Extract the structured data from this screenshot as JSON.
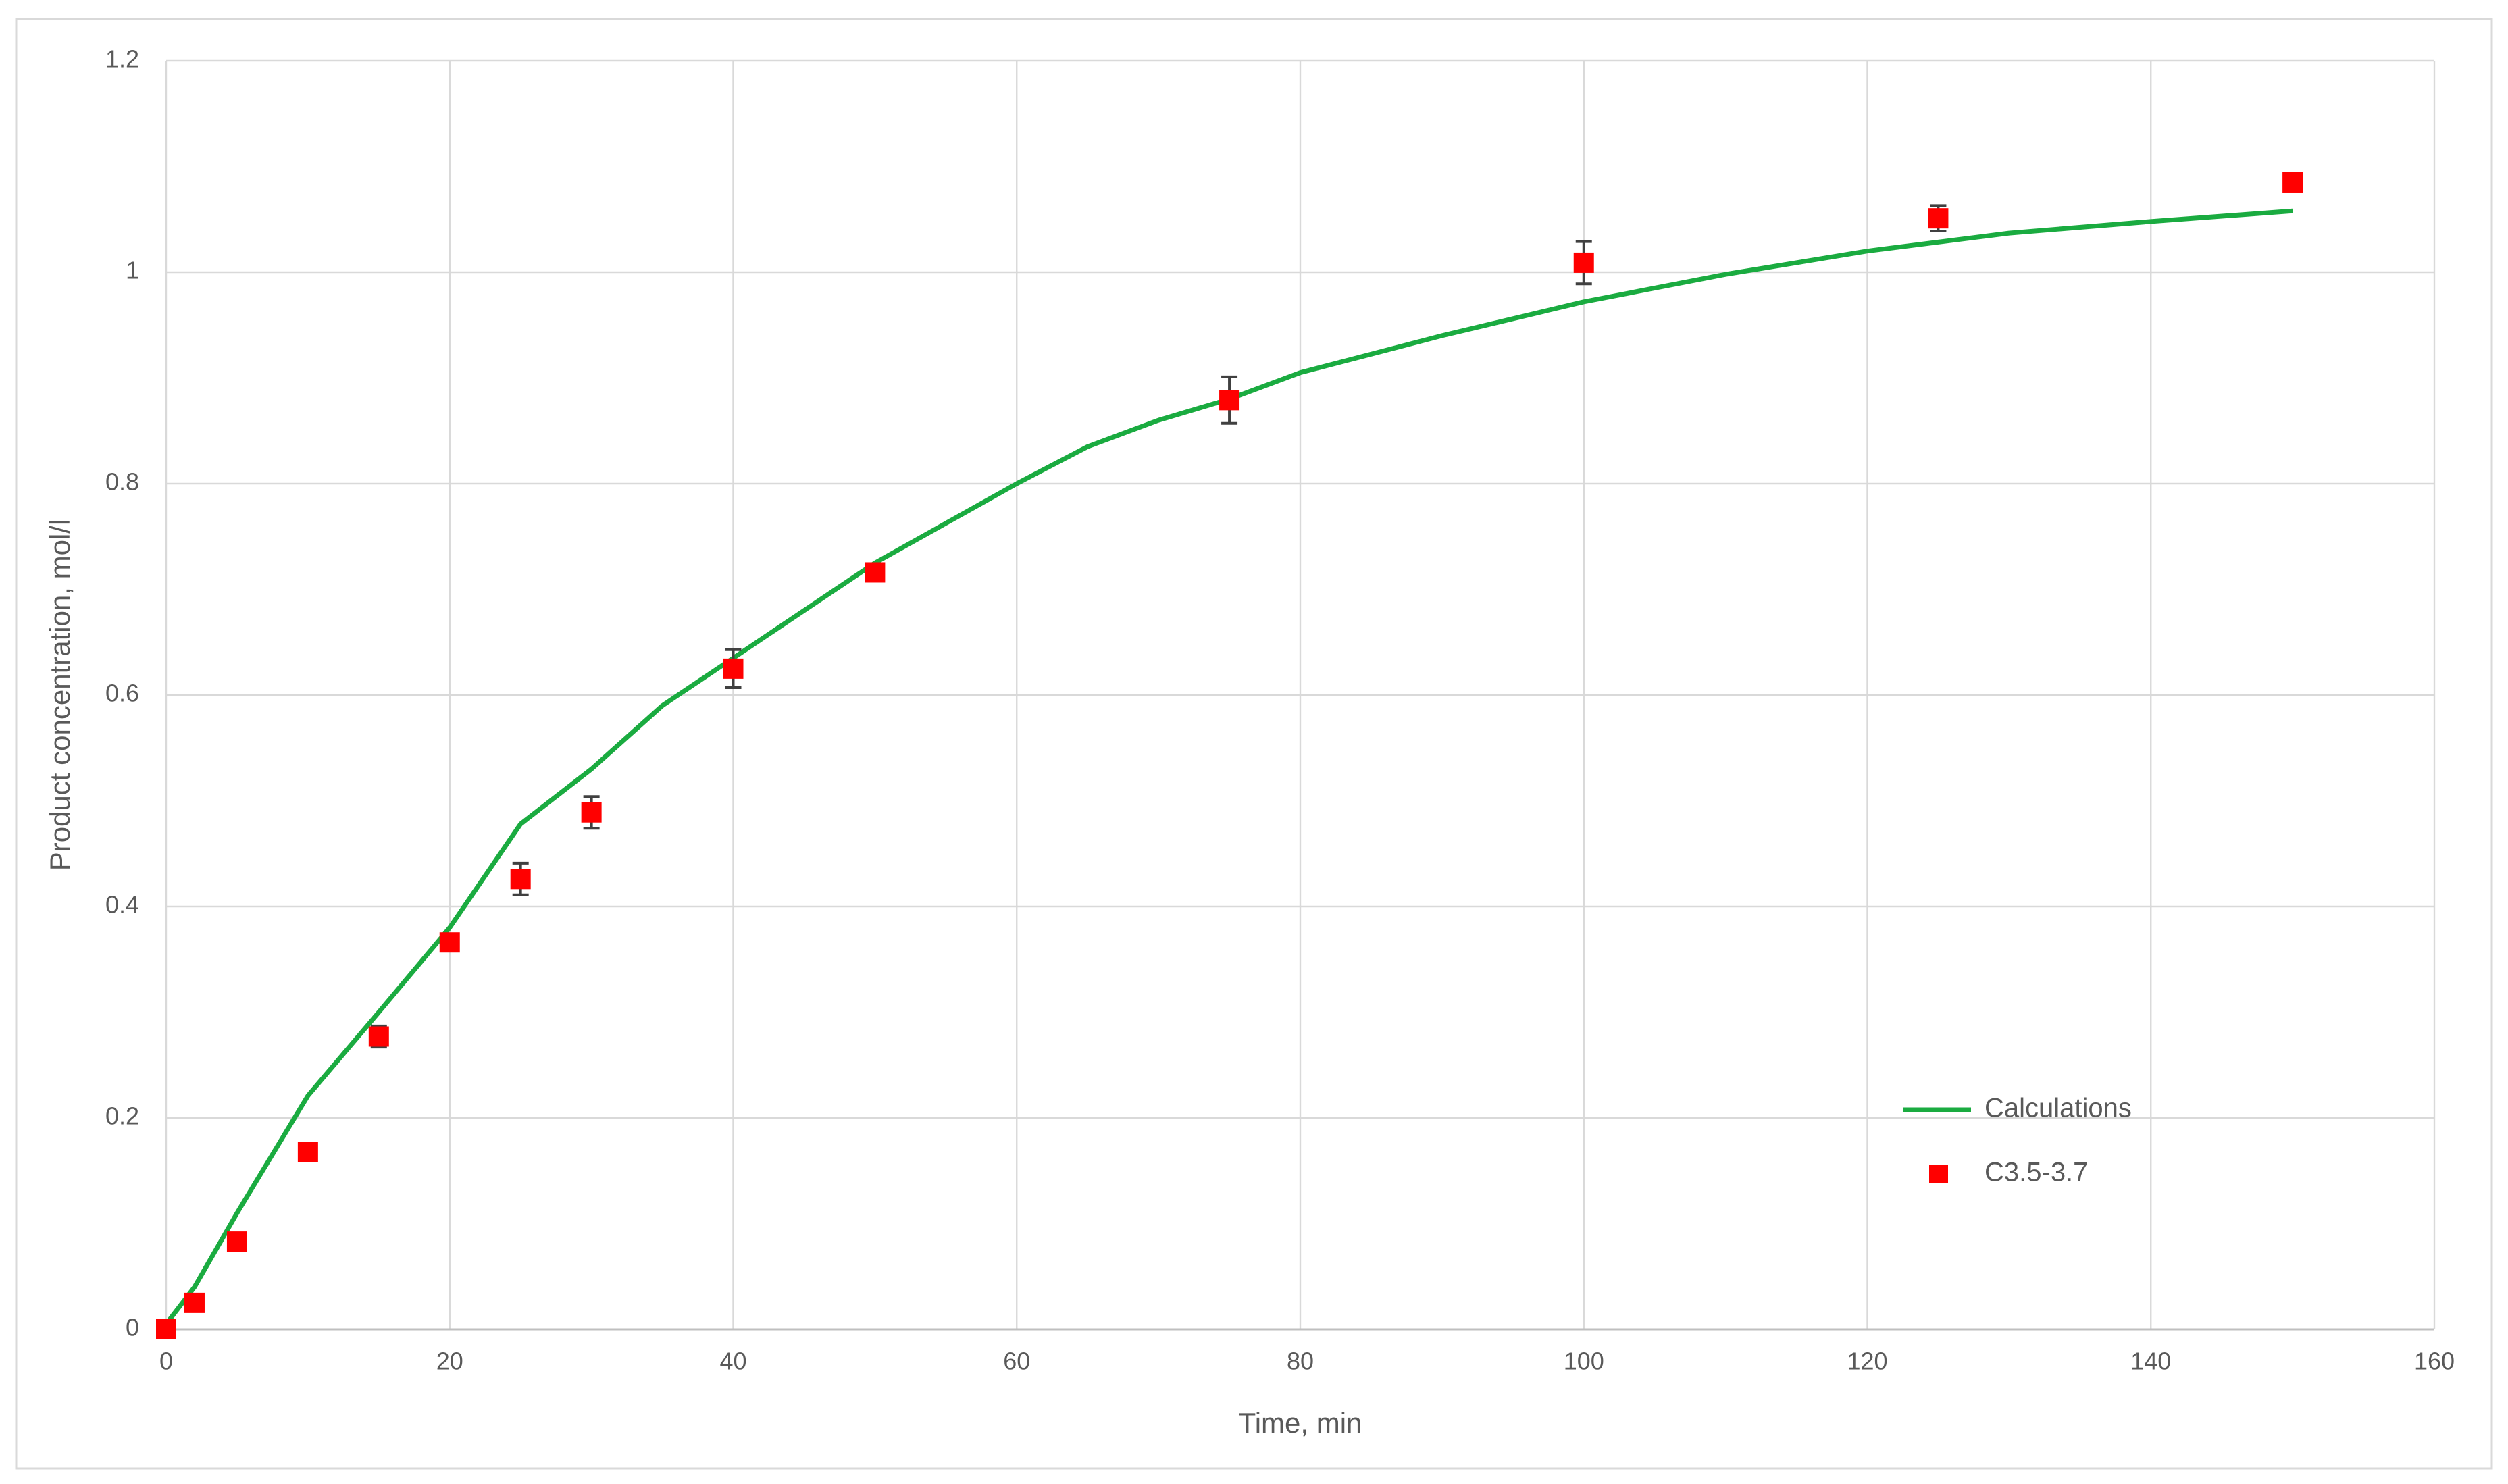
{
  "chart_data": {
    "type": "line",
    "x_label": "Time, min",
    "y_label": "Product concentration, mol/l",
    "xlim": [
      0,
      160
    ],
    "xticks": [
      0,
      20,
      40,
      60,
      80,
      100,
      120,
      140,
      160
    ],
    "ylim": [
      0,
      1.2
    ],
    "yticks": [
      0,
      0.2,
      0.4,
      0.6,
      0.8,
      1,
      1.2
    ],
    "grid": true,
    "legend": "lower right",
    "series": [
      {
        "name": "Calculations",
        "type": "line",
        "color": "#1aab40",
        "x": [
          0,
          2,
          5,
          10,
          15,
          20,
          25,
          30,
          35,
          40,
          50,
          60,
          65,
          70,
          75,
          80,
          90,
          100,
          110,
          120,
          130,
          140,
          150
        ],
        "values": [
          0.005,
          0.04,
          0.11,
          0.221,
          0.3,
          0.38,
          0.478,
          0.53,
          0.59,
          0.635,
          0.725,
          0.8,
          0.835,
          0.86,
          0.88,
          0.905,
          0.94,
          0.972,
          0.998,
          1.02,
          1.037,
          1.048,
          1.058
        ]
      },
      {
        "name": "C3.5-3.7",
        "type": "scatter",
        "color": "#ff0000",
        "x": [
          0,
          2,
          5,
          10,
          15,
          20,
          25,
          30,
          40,
          50,
          75,
          100,
          125,
          150
        ],
        "values": [
          0,
          0.025,
          0.083,
          0.168,
          0.277,
          0.366,
          0.426,
          0.489,
          0.625,
          0.716,
          0.879,
          1.009,
          1.051,
          1.085
        ],
        "errors": [
          0,
          0,
          0,
          0,
          0.01,
          0.005,
          0.015,
          0.015,
          0.018,
          0.005,
          0.022,
          0.02,
          0.012,
          0.008
        ]
      }
    ]
  }
}
